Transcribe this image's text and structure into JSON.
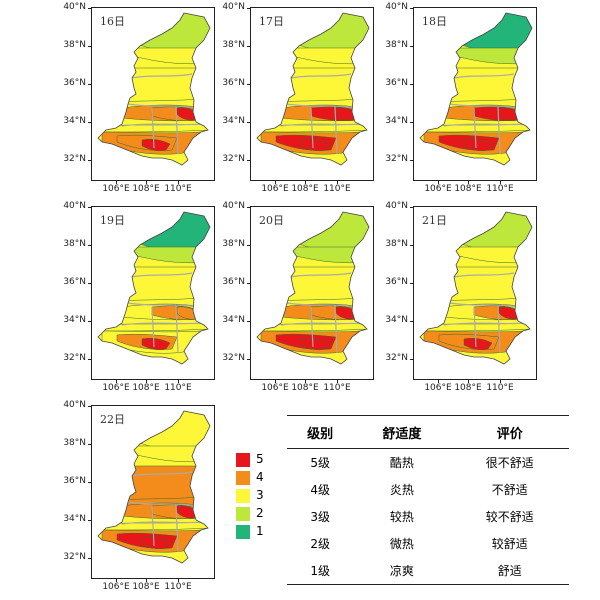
{
  "panels": [
    {
      "day": "16日",
      "classes": [
        2,
        3,
        3,
        3,
        4,
        4,
        5,
        3,
        4,
        4,
        5
      ]
    },
    {
      "day": "17日",
      "classes": [
        2,
        3,
        3,
        3,
        4,
        5,
        5,
        3,
        4,
        5,
        5
      ]
    },
    {
      "day": "18日",
      "classes": [
        1,
        2,
        3,
        3,
        4,
        5,
        5,
        3,
        4,
        5,
        5
      ]
    },
    {
      "day": "19日",
      "classes": [
        1,
        2,
        3,
        3,
        3,
        4,
        4,
        3,
        3,
        4,
        5
      ]
    },
    {
      "day": "20日",
      "classes": [
        2,
        2,
        3,
        3,
        4,
        4,
        5,
        3,
        4,
        5,
        5
      ]
    },
    {
      "day": "21日",
      "classes": [
        2,
        3,
        3,
        3,
        3,
        4,
        5,
        3,
        4,
        4,
        5
      ]
    },
    {
      "day": "22日",
      "classes": [
        3,
        3,
        4,
        4,
        4,
        4,
        5,
        3,
        4,
        5,
        5
      ]
    }
  ],
  "axes": {
    "lat_labels": [
      "40°N",
      "38°N",
      "36°N",
      "34°N",
      "32°N"
    ],
    "lon_labels": [
      "106°E",
      "108°E",
      "110°E"
    ]
  },
  "legend": {
    "items": [
      {
        "label": "5",
        "color": "#e8161b"
      },
      {
        "label": "4",
        "color": "#f48c1c"
      },
      {
        "label": "3",
        "color": "#fef738"
      },
      {
        "label": "2",
        "color": "#bde73a"
      },
      {
        "label": "1",
        "color": "#22b478"
      }
    ]
  },
  "table": {
    "headers": [
      "级别",
      "舒适度",
      "评价"
    ],
    "rows": [
      [
        "5级",
        "酷热",
        "很不舒适"
      ],
      [
        "4级",
        "炎热",
        "不舒适"
      ],
      [
        "3级",
        "较热",
        "较不舒适"
      ],
      [
        "2级",
        "微热",
        "较舒适"
      ],
      [
        "1级",
        "凉爽",
        "舒适"
      ]
    ]
  }
}
